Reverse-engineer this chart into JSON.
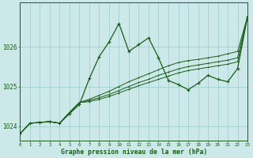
{
  "title": "Graphe pression niveau de la mer (hPa)",
  "background_color": "#cce8e8",
  "grid_color": "#99cccc",
  "line_color": "#1a5c1a",
  "x_min": 0,
  "x_max": 23,
  "y_min": 1023.65,
  "y_max": 1027.1,
  "yticks": [
    1024,
    1025,
    1026
  ],
  "xticks": [
    0,
    1,
    2,
    3,
    4,
    5,
    6,
    7,
    8,
    9,
    10,
    11,
    12,
    13,
    14,
    15,
    16,
    17,
    18,
    19,
    20,
    21,
    22,
    23
  ],
  "series_main": [
    1023.82,
    1024.08,
    1024.1,
    1024.12,
    1024.08,
    1024.32,
    1024.55,
    1025.2,
    1025.75,
    1026.12,
    1026.58,
    1025.88,
    1026.05,
    1026.22,
    1025.72,
    1025.15,
    1025.05,
    1024.92,
    1025.08,
    1025.28,
    1025.18,
    1025.12,
    1025.45,
    1026.75
  ],
  "series_straight": [
    [
      1023.82,
      1024.08,
      1024.1,
      1024.12,
      1024.08,
      1024.35,
      1024.6,
      1024.68,
      1024.78,
      1024.88,
      1025.0,
      1025.12,
      1025.22,
      1025.32,
      1025.42,
      1025.52,
      1025.6,
      1025.65,
      1025.68,
      1025.72,
      1025.76,
      1025.82,
      1025.88,
      1026.75
    ],
    [
      1023.82,
      1024.08,
      1024.1,
      1024.12,
      1024.08,
      1024.35,
      1024.6,
      1024.65,
      1024.72,
      1024.8,
      1024.9,
      1025.0,
      1025.1,
      1025.18,
      1025.28,
      1025.36,
      1025.44,
      1025.5,
      1025.54,
      1025.58,
      1025.62,
      1025.66,
      1025.72,
      1026.75
    ],
    [
      1023.82,
      1024.08,
      1024.1,
      1024.12,
      1024.08,
      1024.35,
      1024.6,
      1024.62,
      1024.68,
      1024.75,
      1024.84,
      1024.93,
      1025.02,
      1025.1,
      1025.18,
      1025.26,
      1025.34,
      1025.4,
      1025.44,
      1025.48,
      1025.52,
      1025.56,
      1025.62,
      1026.75
    ]
  ]
}
